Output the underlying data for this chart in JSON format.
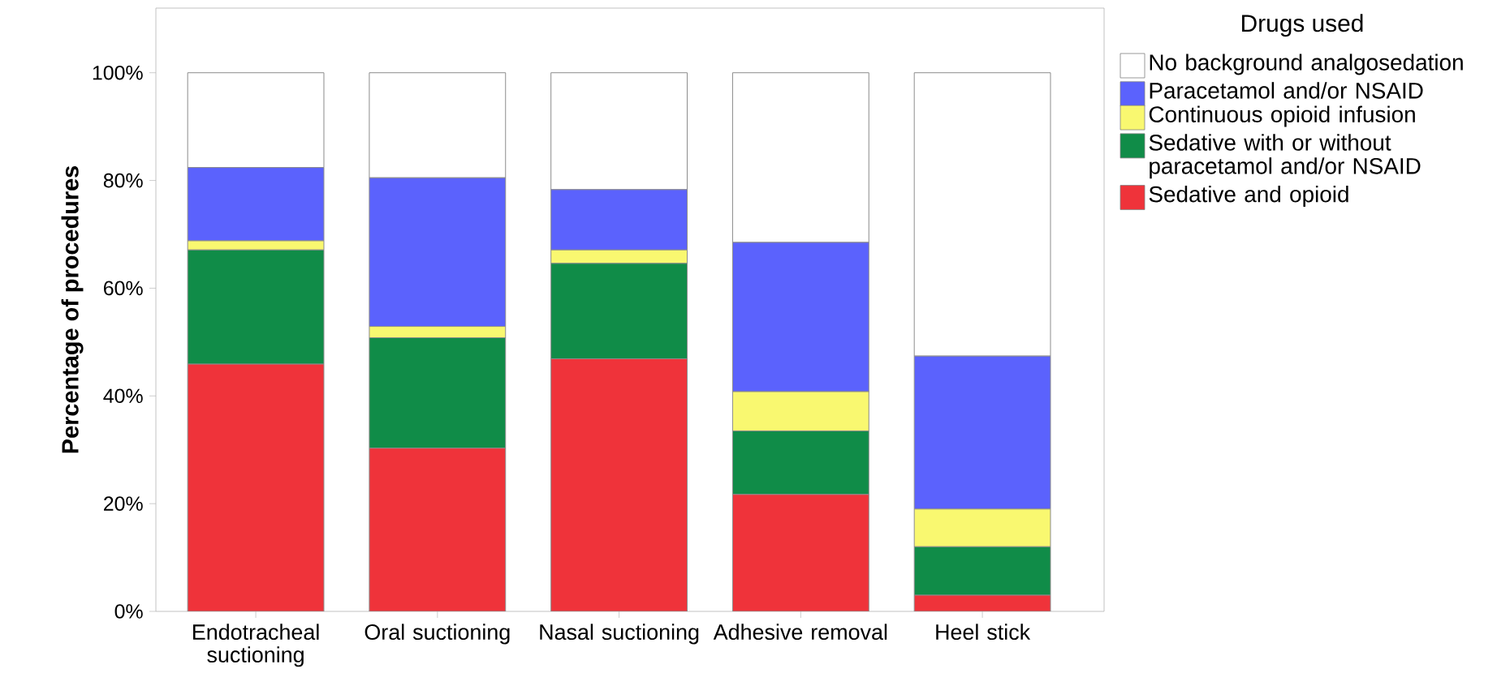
{
  "chart_data": {
    "type": "bar",
    "stacked": true,
    "ylabel": "Percentage of procedures",
    "legend_title": "Drugs used",
    "legend": "right",
    "categories": [
      "Endotracheal suctioning",
      "Oral suctioning",
      "Nasal suctioning",
      "Adhesive removal",
      "Heel stick"
    ],
    "series": [
      {
        "name": "Sedative and opioid",
        "color": "#ef333a",
        "values": [
          45.9,
          30.3,
          46.9,
          21.7,
          3.0
        ]
      },
      {
        "name": "Sedative with or without paracetamol and/or NSAID",
        "color": "#108c48",
        "values": [
          21.2,
          20.5,
          17.7,
          11.8,
          9.0
        ]
      },
      {
        "name": "Continuous opioid infusion",
        "color": "#f9f870",
        "values": [
          1.7,
          2.1,
          2.5,
          7.3,
          7.0
        ]
      },
      {
        "name": "Paracetamol and/or NSAID",
        "color": "#5b62fd",
        "values": [
          13.6,
          27.6,
          11.2,
          27.7,
          28.4
        ]
      },
      {
        "name": "No background analgosedation",
        "color": "#ffffff",
        "values": [
          17.6,
          19.5,
          21.7,
          31.5,
          52.6
        ]
      }
    ],
    "ylim": [
      0,
      112
    ],
    "yticks": [
      {
        "value": 0,
        "label": "0%"
      },
      {
        "value": 20,
        "label": "20%"
      },
      {
        "value": 40,
        "label": "40%"
      },
      {
        "value": 60,
        "label": "60%"
      },
      {
        "value": 80,
        "label": "80%"
      },
      {
        "value": 100,
        "label": "100%"
      }
    ]
  }
}
